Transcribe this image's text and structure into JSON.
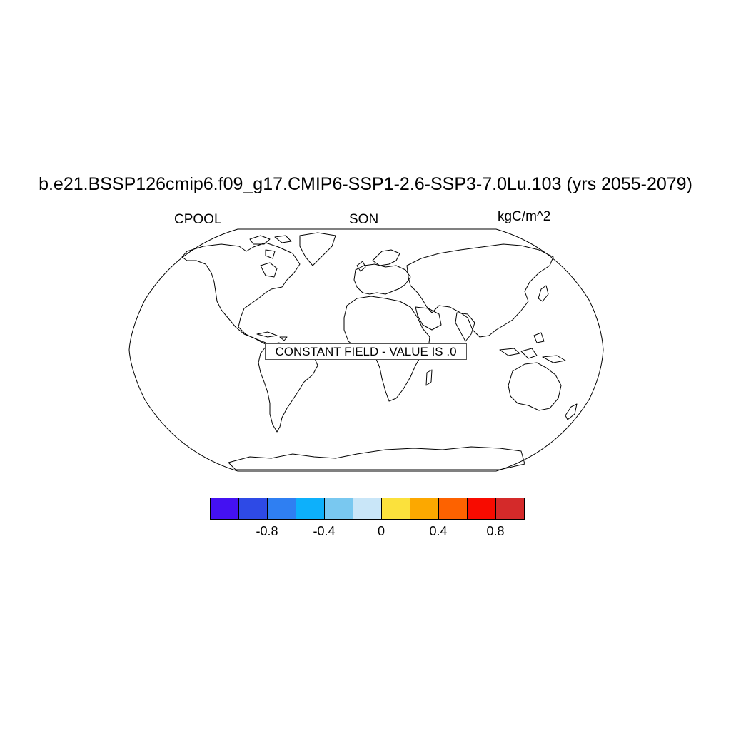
{
  "figure": {
    "title": "b.e21.BSSP126cmip6.f09_g17.CMIP6-SSP1-2.6-SSP3-7.0Lu.103 (yrs 2055-2079)",
    "left_label": "CPOOL",
    "center_label": "SON",
    "right_label": "kgC/m^2",
    "constant_field_text": "CONSTANT FIELD - VALUE IS .0"
  },
  "map": {
    "projection": "robinson",
    "coastlines": true,
    "field_value": 0
  },
  "colorbar": {
    "colors": [
      "#4411f2",
      "#2e4ae6",
      "#2f7ff2",
      "#0db0fb",
      "#79c8f0",
      "#c9e6f8",
      "#fbe13c",
      "#fca800",
      "#fd6200",
      "#f80b00",
      "#d42a2a"
    ],
    "ticks": [
      {
        "index": 1,
        "label": "-0.8"
      },
      {
        "index": 3,
        "label": "-0.4"
      },
      {
        "index": 5,
        "label": "0"
      },
      {
        "index": 7,
        "label": "0.4"
      },
      {
        "index": 9,
        "label": "0.8"
      }
    ]
  },
  "chart_data": {
    "type": "heatmap",
    "title": "b.e21.BSSP126cmip6.f09_g17.CMIP6-SSP1-2.6-SSP3-7.0Lu.103 (yrs 2055-2079)",
    "variable": "CPOOL",
    "season": "SON",
    "units": "kgC/m^2",
    "constant_value": 0,
    "colorbar_tick_labels": [
      "-0.8",
      "-0.4",
      "0",
      "0.4",
      "0.8"
    ],
    "colorbar_tick_values": [
      -0.8,
      -0.4,
      0,
      0.4,
      0.8
    ]
  }
}
